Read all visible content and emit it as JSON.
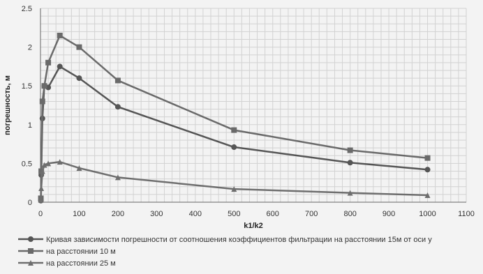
{
  "chart_data": {
    "type": "line",
    "title": "",
    "xlabel": "k1/k2",
    "ylabel": "погрешность, м",
    "xlim": [
      0,
      1100
    ],
    "ylim": [
      0,
      2.5
    ],
    "x_ticks": [
      "0",
      "100",
      "200",
      "300",
      "400",
      "500",
      "600",
      "700",
      "800",
      "900",
      "1000",
      "1100"
    ],
    "y_ticks": [
      "0",
      "0.5",
      "1",
      "1.5",
      "2",
      "2.5"
    ],
    "grid": true,
    "legend_position": "bottom",
    "series": [
      {
        "name": "Кривая зависимости погрешности от соотношения коэффициентов фильтрации на расстоянии 15м от оси у",
        "marker": "circle",
        "color": "#555555",
        "x": [
          1,
          2,
          5,
          10,
          20,
          50,
          100,
          200,
          500,
          800,
          1000
        ],
        "y": [
          0.02,
          0.35,
          1.08,
          1.5,
          1.48,
          1.75,
          1.6,
          1.23,
          0.71,
          0.51,
          0.42
        ]
      },
      {
        "name": "на расстоянии 10 м",
        "marker": "square",
        "color": "#6a6a6a",
        "x": [
          1,
          2,
          5,
          10,
          20,
          50,
          100,
          200,
          500,
          800,
          1000
        ],
        "y": [
          0.05,
          0.4,
          1.3,
          1.5,
          1.8,
          2.15,
          2.0,
          1.57,
          0.93,
          0.67,
          0.57
        ]
      },
      {
        "name": "на расстоянии 25 м",
        "marker": "triangle",
        "color": "#6e6e6e",
        "x": [
          1,
          2,
          5,
          10,
          20,
          50,
          100,
          200,
          500,
          800,
          1000
        ],
        "y": [
          0.03,
          0.18,
          0.4,
          0.48,
          0.5,
          0.52,
          0.44,
          0.32,
          0.17,
          0.12,
          0.09
        ]
      }
    ]
  }
}
